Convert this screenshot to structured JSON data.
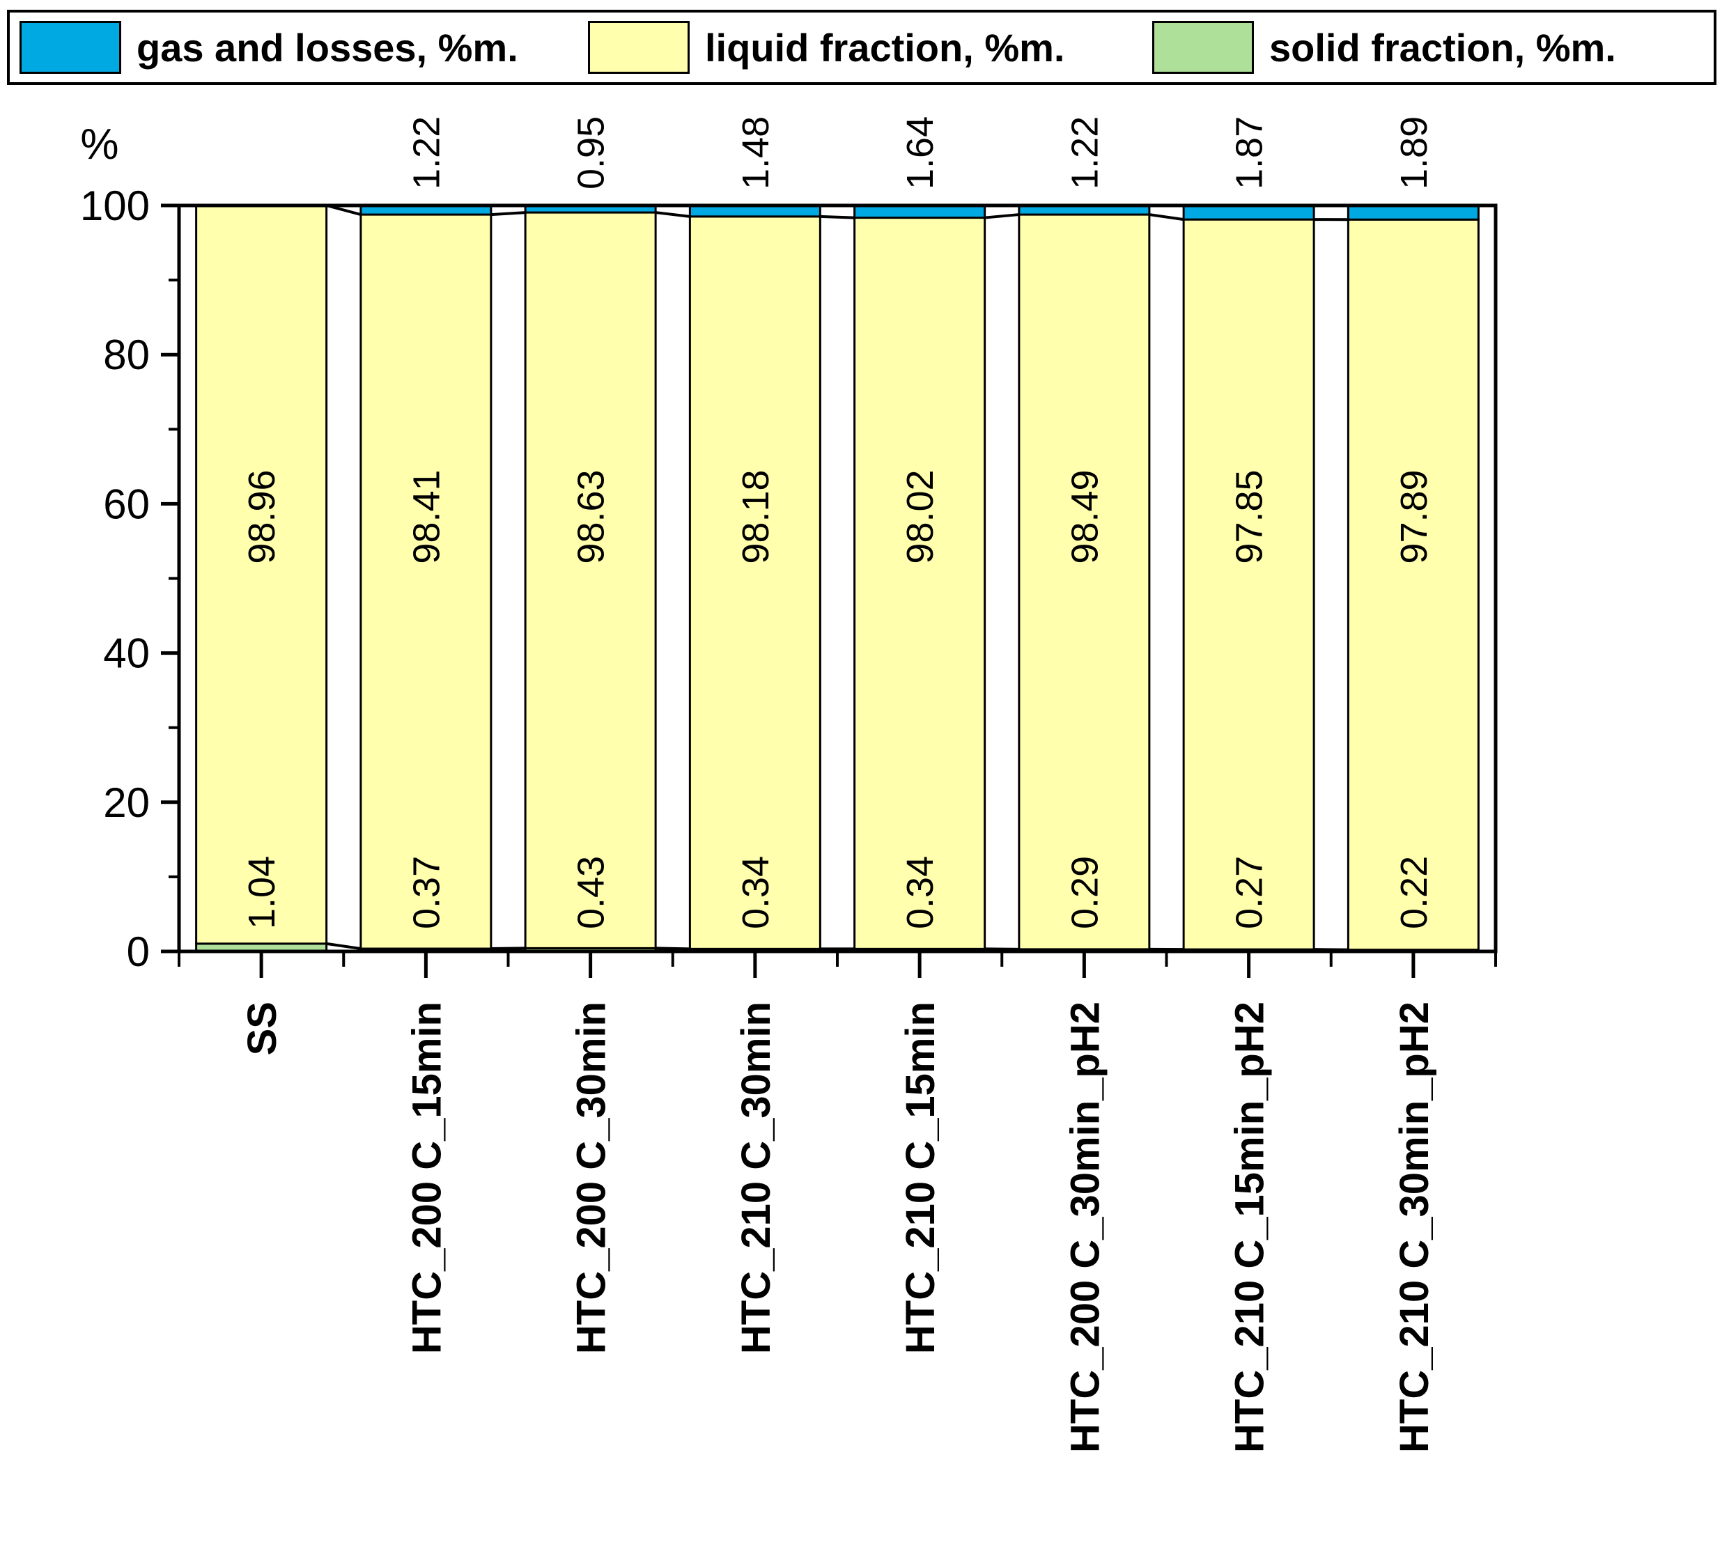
{
  "legend": {
    "items": [
      {
        "label": "gas and losses, %m.",
        "color": "#00A9E2"
      },
      {
        "label": "liquid fraction, %m.",
        "color": "#FFFFAD"
      },
      {
        "label": "solid fraction, %m.",
        "color": "#AEE09A"
      }
    ]
  },
  "axis": {
    "y_label": "%",
    "y_major_ticks": [
      0,
      20,
      40,
      60,
      80,
      100
    ],
    "y_minor_ticks": [
      10,
      30,
      50,
      70,
      90
    ]
  },
  "chart_data": {
    "type": "bar",
    "stacked": true,
    "title": "",
    "xlabel": "",
    "ylabel": "%",
    "ylim": [
      0,
      100
    ],
    "grid": false,
    "legend_position": "top",
    "connect_lines": true,
    "categories": [
      "SS",
      "HTC_200 C_15min",
      "HTC_200 C_30min",
      "HTC_210 C_30min",
      "HTC_210 C_15min",
      "HTC_200 C_30min_pH2",
      "HTC_210 C_15min_pH2",
      "HTC_210 C_30min_pH2"
    ],
    "series": [
      {
        "name": "solid fraction, %m.",
        "color": "#AEE09A",
        "values": [
          1.04,
          0.37,
          0.43,
          0.34,
          0.34,
          0.29,
          0.27,
          0.22
        ]
      },
      {
        "name": "liquid fraction, %m.",
        "color": "#FFFFAD",
        "values": [
          98.96,
          98.41,
          98.63,
          98.18,
          98.02,
          98.49,
          97.85,
          97.89
        ]
      },
      {
        "name": "gas and losses, %m.",
        "color": "#00A9E2",
        "values": [
          0,
          1.22,
          0.95,
          1.48,
          1.64,
          1.22,
          1.87,
          1.89
        ]
      }
    ]
  }
}
